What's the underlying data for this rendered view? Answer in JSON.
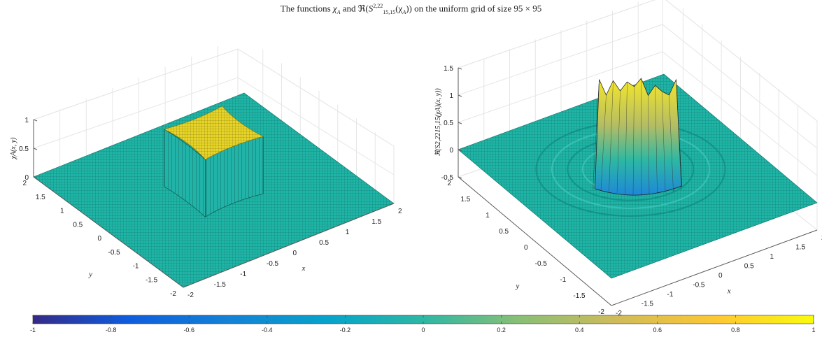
{
  "title": {
    "pre": "The functions ",
    "chi": "χ",
    "chi_sub": "A",
    "and": " and ℜ(",
    "s": "S",
    "s_sup": "2,22",
    "s_sub": "15,15",
    "mid": "(χ",
    "mid_sub": "A",
    "post": ")) on the uniform grid of size 95 × 95"
  },
  "colors": {
    "surface_base": "#1fb5a6",
    "surface_top": "#e6d428",
    "mesh": "#0b3b38",
    "axis": "#5a5a5a",
    "grid": "#e6e6e6"
  },
  "chart_data": [
    {
      "type": "surface",
      "name": "left-surface",
      "zlabel": "χA(x, y)",
      "xlabel": "x",
      "ylabel": "y",
      "x_ticks": [
        "-2",
        "-1.5",
        "-1",
        "-0.5",
        "0",
        "0.5",
        "1",
        "1.5",
        "2"
      ],
      "y_ticks": [
        "-2",
        "-1.5",
        "-1",
        "-0.5",
        "0",
        "0.5",
        "1",
        "1.5",
        "2"
      ],
      "z_ticks": [
        "0",
        "0.5",
        "1"
      ],
      "xlim": [
        -2,
        2
      ],
      "ylim": [
        -2,
        2
      ],
      "zlim": [
        0,
        1
      ],
      "grid": "on"
    },
    {
      "type": "surface",
      "name": "right-surface",
      "zlabel": "ℜ(S2,2215,15(χA)(x, y))",
      "xlabel": "x",
      "ylabel": "y",
      "x_ticks": [
        "-2",
        "-1.5",
        "-1",
        "-0.5",
        "0",
        "0.5",
        "1",
        "1.5",
        "2"
      ],
      "y_ticks": [
        "-2",
        "-1.5",
        "-1",
        "-0.5",
        "0",
        "0.5",
        "1",
        "1.5",
        "2"
      ],
      "z_ticks": [
        "-0.5",
        "0",
        "0.5",
        "1",
        "1.5"
      ],
      "xlim": [
        -2,
        2
      ],
      "ylim": [
        -2,
        2
      ],
      "zlim": [
        -0.5,
        1.5
      ],
      "grid": "on"
    }
  ],
  "colorbar": {
    "ticks": [
      "-1",
      "-0.8",
      "-0.6",
      "-0.4",
      "-0.2",
      "0",
      "0.2",
      "0.4",
      "0.6",
      "0.8",
      "1"
    ],
    "range": [
      -1,
      1
    ],
    "orientation": "horizontal"
  }
}
